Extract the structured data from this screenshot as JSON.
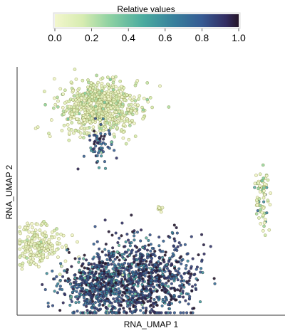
{
  "chart_data": {
    "type": "scatter",
    "title": "",
    "xlabel": "RNA_UMAP 1",
    "ylabel": "RNA_UMAP 2",
    "xlim": [
      0,
      100
    ],
    "ylim": [
      0,
      100
    ],
    "grid": false,
    "legend": "none",
    "colorbar": {
      "title": "Relative values",
      "position": "top-center",
      "range": [
        0.0,
        1.0
      ],
      "ticks": [
        0.0,
        0.2,
        0.4,
        0.6,
        0.8,
        1.0
      ],
      "tick_labels": [
        "0.0",
        "0.2",
        "0.4",
        "0.6",
        "0.8",
        "1.0"
      ],
      "colormap": [
        "#f2f6cc",
        "#d7ecb1",
        "#8dd1a2",
        "#4aab9f",
        "#377f9c",
        "#365a93",
        "#332d62",
        "#251528"
      ]
    },
    "clusters": [
      {
        "center": [
          31,
          83.9
        ],
        "spread": [
          7.1,
          5.0
        ],
        "value": 0.08,
        "value_spread": 0.1,
        "count": 730,
        "outline": "#90954f"
      },
      {
        "center": [
          30.5,
          68.8
        ],
        "spread": [
          2.6,
          3.7
        ],
        "value": 0.74,
        "value_spread": 0.16,
        "count": 65,
        "outline": "#2d2c3e"
      },
      {
        "center": [
          91.5,
          47.4
        ],
        "spread": [
          1.4,
          6.0
        ],
        "value": 0.12,
        "value_spread": 0.18,
        "count": 75,
        "outline": "#90954f"
      },
      {
        "center": [
          53.3,
          42.8
        ],
        "spread": [
          0.5,
          0.7
        ],
        "value": 0.05,
        "value_spread": 0.03,
        "count": 10,
        "outline": "#90954f"
      },
      {
        "center": [
          8,
          28.7
        ],
        "spread": [
          5.0,
          4.2
        ],
        "value": 0.05,
        "value_spread": 0.08,
        "count": 190,
        "outline": "#90954f"
      },
      {
        "center": [
          30,
          12.5
        ],
        "spread": [
          7.1,
          6.0
        ],
        "value": 0.72,
        "value_spread": 0.18,
        "count": 560,
        "outline": "#2a304d"
      },
      {
        "center": [
          48.8,
          14.9
        ],
        "spread": [
          9.0,
          8.6
        ],
        "value": 0.76,
        "value_spread": 0.18,
        "count": 800,
        "outline": "#2a304d"
      }
    ]
  }
}
